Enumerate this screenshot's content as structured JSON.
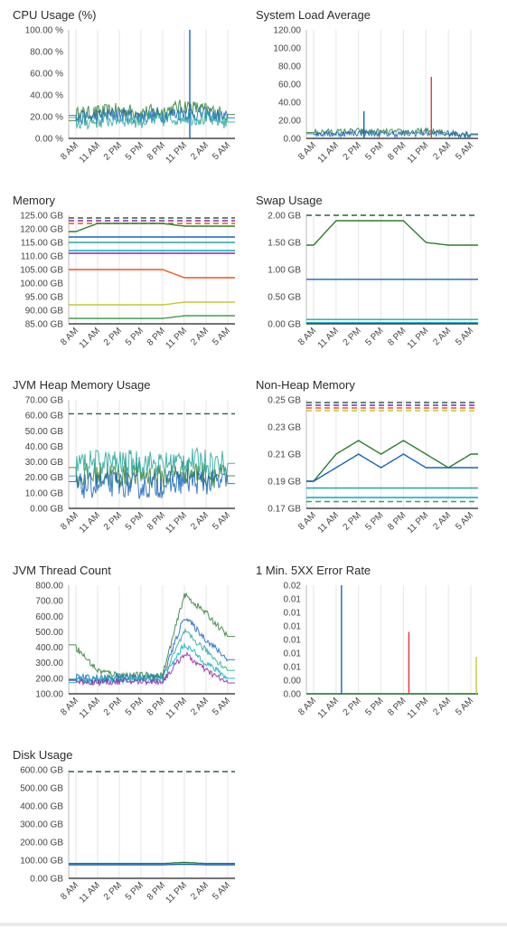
{
  "colors": {
    "grid": "#e6e6e6",
    "axis": "#222222",
    "threshold": "#2f5d50",
    "palette": [
      "#2e7d32",
      "#1565c0",
      "#26a69a",
      "#00acc1",
      "#8e24aa",
      "#f4511e",
      "#c0ca33",
      "#43a047",
      "#9e9e9e",
      "#fdd835",
      "#e53935",
      "#3949ab"
    ]
  },
  "x_ticks": [
    "8 AM",
    "11 AM",
    "2 PM",
    "5 PM",
    "8 PM",
    "11 PM",
    "2 AM",
    "5 AM"
  ],
  "charts": [
    {
      "id": "cpu",
      "title": "CPU Usage (%)",
      "y_ticks": [
        "100.00 %",
        "80.00 %",
        "60.00 %",
        "40.00 %",
        "20.00 %",
        "0.00 %"
      ],
      "ylim": [
        0,
        100
      ]
    },
    {
      "id": "load",
      "title": "System Load Average",
      "y_ticks": [
        "120.00",
        "100.00",
        "80.00",
        "60.00",
        "40.00",
        "20.00",
        "0.00"
      ],
      "ylim": [
        0,
        120
      ]
    },
    {
      "id": "memory",
      "title": "Memory",
      "y_ticks": [
        "125.00 GB",
        "120.00 GB",
        "115.00 GB",
        "110.00 GB",
        "105.00 GB",
        "100.00 GB",
        "95.00 GB",
        "90.00 GB",
        "85.00 GB"
      ],
      "ylim": [
        85,
        125
      ]
    },
    {
      "id": "swap",
      "title": "Swap Usage",
      "y_ticks": [
        "2.00 GB",
        "1.50 GB",
        "1.00 GB",
        "0.50 GB",
        "0.00 GB"
      ],
      "ylim": [
        0,
        2
      ]
    },
    {
      "id": "heap",
      "title": "JVM Heap Memory Usage",
      "y_ticks": [
        "70.00 GB",
        "60.00 GB",
        "50.00 GB",
        "40.00 GB",
        "30.00 GB",
        "20.00 GB",
        "10.00 GB",
        "0.00 GB"
      ],
      "ylim": [
        0,
        70
      ]
    },
    {
      "id": "nonheap",
      "title": "Non-Heap Memory",
      "y_ticks": [
        "0.25 GB",
        "0.23 GB",
        "0.21 GB",
        "0.19 GB",
        "0.17 GB"
      ],
      "ylim": [
        0.17,
        0.25
      ]
    },
    {
      "id": "threads",
      "title": "JVM Thread Count",
      "y_ticks": [
        "800.00",
        "700.00",
        "600.00",
        "500.00",
        "400.00",
        "300.00",
        "200.00",
        "100.00"
      ],
      "ylim": [
        100,
        800
      ]
    },
    {
      "id": "errors",
      "title": "1 Min. 5XX Error Rate",
      "y_ticks": [
        "0.02",
        "0.01",
        "0.01",
        "0.01",
        "0.01",
        "0.01",
        "0.01",
        "0.00",
        "0.00"
      ],
      "ylim": [
        0,
        0.02
      ]
    },
    {
      "id": "disk",
      "title": "Disk Usage",
      "y_ticks": [
        "600.00 GB",
        "500.00 GB",
        "400.00 GB",
        "300.00 GB",
        "200.00 GB",
        "100.00 GB",
        "0.00 GB"
      ],
      "ylim": [
        0,
        600
      ]
    }
  ],
  "chart_data": [
    {
      "type": "line",
      "title": "CPU Usage (%)",
      "categories": [
        "8 AM",
        "11 AM",
        "2 PM",
        "5 PM",
        "8 PM",
        "11 PM",
        "2 AM",
        "5 AM"
      ],
      "ylim": [
        0,
        100
      ],
      "series": [
        {
          "values": [
            22,
            24,
            26,
            24,
            25,
            30,
            26,
            22
          ]
        },
        {
          "values": [
            18,
            20,
            22,
            20,
            21,
            24,
            22,
            19
          ]
        },
        {
          "values": [
            14,
            16,
            18,
            16,
            17,
            20,
            18,
            15
          ]
        }
      ],
      "spikes": [
        {
          "x": "11 PM",
          "value": 100
        }
      ]
    },
    {
      "type": "line",
      "title": "System Load Average",
      "categories": [
        "8 AM",
        "11 AM",
        "2 PM",
        "5 PM",
        "8 PM",
        "11 PM",
        "2 AM",
        "5 AM"
      ],
      "ylim": [
        0,
        120
      ],
      "series": [
        {
          "values": [
            7,
            7,
            8,
            7,
            7,
            8,
            6,
            5
          ]
        },
        {
          "values": [
            5,
            5,
            6,
            5,
            5,
            6,
            5,
            4
          ]
        }
      ],
      "spikes": [
        {
          "x": "2 PM",
          "value": 30
        },
        {
          "x": "11 PM",
          "value": 68
        }
      ]
    },
    {
      "type": "line",
      "title": "Memory",
      "categories": [
        "8 AM",
        "11 AM",
        "2 PM",
        "5 PM",
        "8 PM",
        "11 PM",
        "2 AM",
        "5 AM"
      ],
      "ylim": [
        85,
        125
      ],
      "thresholds": [
        124,
        123,
        122
      ],
      "series": [
        {
          "values": [
            119,
            122,
            122,
            122,
            122,
            121,
            121,
            121
          ]
        },
        {
          "values": [
            117,
            117,
            117,
            117,
            117,
            117,
            117,
            117
          ]
        },
        {
          "values": [
            115,
            115,
            115,
            115,
            115,
            115,
            115,
            115
          ]
        },
        {
          "values": [
            112,
            112,
            112,
            112,
            112,
            112,
            112,
            112
          ]
        },
        {
          "values": [
            111,
            111,
            111,
            111,
            111,
            111,
            111,
            111
          ]
        },
        {
          "values": [
            105,
            105,
            105,
            105,
            105,
            102,
            102,
            102
          ]
        },
        {
          "values": [
            92,
            92,
            92,
            92,
            92,
            93,
            93,
            93
          ]
        },
        {
          "values": [
            87,
            87,
            87,
            87,
            87,
            88,
            88,
            88
          ]
        }
      ]
    },
    {
      "type": "line",
      "title": "Swap Usage",
      "categories": [
        "8 AM",
        "11 AM",
        "2 PM",
        "5 PM",
        "8 PM",
        "11 PM",
        "2 AM",
        "5 AM"
      ],
      "ylim": [
        0,
        2
      ],
      "thresholds": [
        2.0
      ],
      "series": [
        {
          "values": [
            1.45,
            1.9,
            1.9,
            1.9,
            1.9,
            1.5,
            1.45,
            1.45
          ]
        },
        {
          "values": [
            0.82,
            0.82,
            0.82,
            0.82,
            0.82,
            0.82,
            0.82,
            0.82
          ]
        },
        {
          "values": [
            0.08,
            0.08,
            0.08,
            0.08,
            0.08,
            0.08,
            0.08,
            0.08
          ]
        },
        {
          "values": [
            0.02,
            0.02,
            0.02,
            0.02,
            0.02,
            0.02,
            0.02,
            0.02
          ]
        }
      ]
    },
    {
      "type": "line",
      "title": "JVM Heap Memory Usage",
      "categories": [
        "8 AM",
        "11 AM",
        "2 PM",
        "5 PM",
        "8 PM",
        "11 PM",
        "2 AM",
        "5 AM"
      ],
      "ylim": [
        0,
        70
      ],
      "thresholds": [
        61
      ],
      "series": [
        {
          "values": [
            20,
            22,
            21,
            22,
            20,
            24,
            22,
            21
          ]
        },
        {
          "values": [
            14,
            15,
            16,
            14,
            15,
            18,
            17,
            16
          ]
        },
        {
          "values": [
            28,
            30,
            29,
            30,
            28,
            31,
            30,
            29
          ]
        }
      ]
    },
    {
      "type": "line",
      "title": "Non-Heap Memory",
      "categories": [
        "8 AM",
        "11 AM",
        "2 PM",
        "5 PM",
        "8 PM",
        "11 PM",
        "2 AM",
        "5 AM"
      ],
      "ylim": [
        0.17,
        0.25
      ],
      "thresholds": [
        0.248,
        0.246,
        0.244,
        0.242,
        0.175
      ],
      "series": [
        {
          "values": [
            0.19,
            0.21,
            0.22,
            0.21,
            0.22,
            0.21,
            0.2,
            0.21
          ]
        },
        {
          "values": [
            0.19,
            0.2,
            0.21,
            0.2,
            0.21,
            0.2,
            0.2,
            0.2
          ]
        },
        {
          "values": [
            0.185,
            0.185,
            0.185,
            0.185,
            0.185,
            0.185,
            0.185,
            0.185
          ]
        },
        {
          "values": [
            0.178,
            0.178,
            0.178,
            0.178,
            0.178,
            0.178,
            0.178,
            0.178
          ]
        }
      ]
    },
    {
      "type": "line",
      "title": "JVM Thread Count",
      "categories": [
        "8 AM",
        "11 AM",
        "2 PM",
        "5 PM",
        "8 PM",
        "11 PM",
        "2 AM",
        "5 AM"
      ],
      "ylim": [
        100,
        800
      ],
      "series": [
        {
          "values": [
            400,
            250,
            220,
            220,
            220,
            740,
            620,
            470
          ]
        },
        {
          "values": [
            210,
            200,
            210,
            210,
            210,
            600,
            450,
            320
          ]
        },
        {
          "values": [
            200,
            190,
            200,
            200,
            200,
            500,
            380,
            250
          ]
        },
        {
          "values": [
            190,
            180,
            190,
            190,
            190,
            420,
            300,
            200
          ]
        },
        {
          "values": [
            180,
            175,
            180,
            180,
            180,
            360,
            250,
            170
          ]
        }
      ]
    },
    {
      "type": "line",
      "title": "1 Min. 5XX Error Rate",
      "categories": [
        "8 AM",
        "11 AM",
        "2 PM",
        "5 PM",
        "8 PM",
        "11 PM",
        "2 AM",
        "5 AM"
      ],
      "ylim": [
        0,
        0.02
      ],
      "series": [
        {
          "values": [
            0,
            0,
            0,
            0,
            0,
            0,
            0,
            0
          ]
        }
      ],
      "spikes": [
        {
          "x": "11 AM",
          "value": 0.02
        },
        {
          "x": "8 PM",
          "value": 0.0114
        },
        {
          "x": "5 AM",
          "value": 0.0068
        }
      ]
    },
    {
      "type": "line",
      "title": "Disk Usage",
      "categories": [
        "8 AM",
        "11 AM",
        "2 PM",
        "5 PM",
        "8 PM",
        "11 PM",
        "2 AM",
        "5 AM"
      ],
      "ylim": [
        0,
        600
      ],
      "thresholds": [
        590
      ],
      "series": [
        {
          "values": [
            82,
            82,
            82,
            82,
            82,
            88,
            82,
            82
          ]
        },
        {
          "values": [
            75,
            75,
            75,
            75,
            75,
            78,
            75,
            75
          ]
        }
      ]
    }
  ]
}
